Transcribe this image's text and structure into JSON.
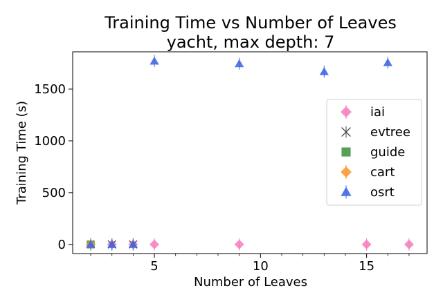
{
  "chart_data": {
    "type": "scatter",
    "title": "Training Time vs Number of Leaves",
    "subtitle": "yacht, max depth: 7",
    "xlabel": "Number of Leaves",
    "ylabel": "Training Time (s)",
    "xlim": [
      1.15,
      17.85
    ],
    "ylim": [
      -88,
      1860
    ],
    "x_ticks": [
      5,
      10,
      15
    ],
    "y_ticks": [
      0,
      500,
      1000,
      1500
    ],
    "grid": false,
    "legend_position": "center-right",
    "series": [
      {
        "name": "iai",
        "marker": "diamond",
        "color": "#f47cbd",
        "points": [
          [
            2,
            0
          ],
          [
            3,
            0
          ],
          [
            4,
            0
          ],
          [
            5,
            0
          ],
          [
            9,
            0
          ],
          [
            15,
            0
          ],
          [
            17,
            0
          ]
        ]
      },
      {
        "name": "evtree",
        "marker": "x",
        "color": "#404040",
        "points": [
          [
            3,
            0
          ],
          [
            4,
            0
          ]
        ]
      },
      {
        "name": "guide",
        "marker": "square",
        "color": "#3b8f3b",
        "points": [
          [
            2,
            0
          ]
        ]
      },
      {
        "name": "cart",
        "marker": "diamond",
        "color": "#f9952e",
        "points": [
          [
            2,
            0
          ]
        ]
      },
      {
        "name": "osrt",
        "marker": "triangle",
        "color": "#4169e1",
        "points": [
          [
            2,
            0
          ],
          [
            3,
            0
          ],
          [
            4,
            0
          ],
          [
            5,
            1770
          ],
          [
            9,
            1745
          ],
          [
            13,
            1668
          ],
          [
            16,
            1755
          ]
        ]
      }
    ]
  }
}
